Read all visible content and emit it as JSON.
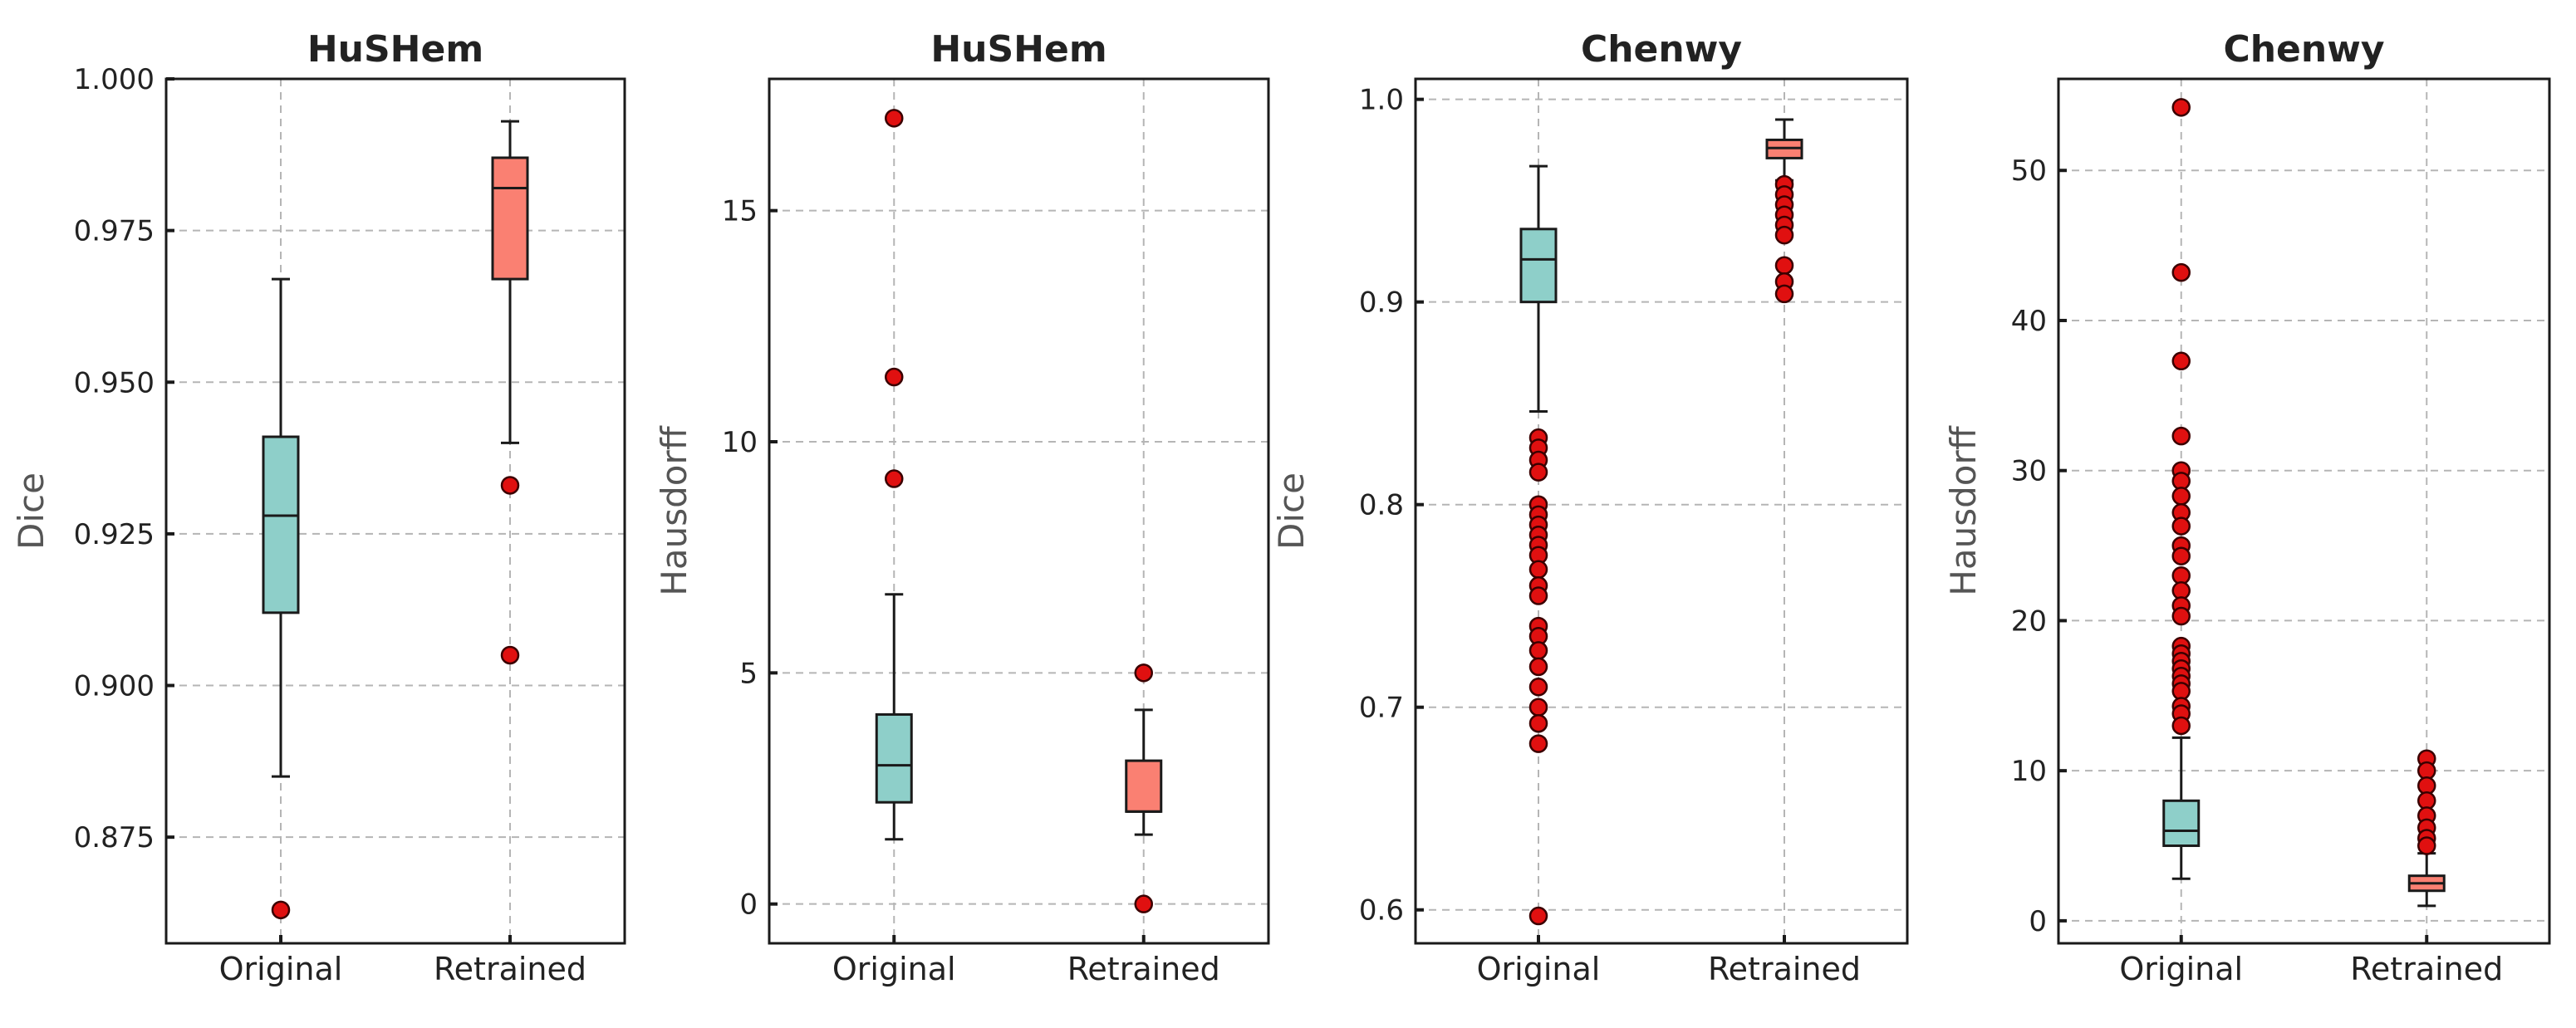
{
  "colors": {
    "original": "#8ecfc9",
    "retrained": "#fa8072",
    "flier": "#e01010"
  },
  "chart_data": [
    {
      "type": "box",
      "title": "HuSHem",
      "ylabel": "Dice",
      "xlabel": "",
      "ylim": [
        0.8575,
        1.0
      ],
      "yticks": [
        0.875,
        0.9,
        0.925,
        0.95,
        0.975,
        1.0
      ],
      "ytick_labels": [
        "0.875",
        "0.900",
        "0.925",
        "0.950",
        "0.975",
        "1.000"
      ],
      "categories": [
        "Original",
        "Retrained"
      ],
      "series": [
        {
          "name": "Original",
          "whisker_low": 0.885,
          "q1": 0.912,
          "median": 0.928,
          "q3": 0.941,
          "whisker_high": 0.967,
          "fliers": [
            0.863
          ]
        },
        {
          "name": "Retrained",
          "whisker_low": 0.94,
          "q1": 0.967,
          "median": 0.982,
          "q3": 0.987,
          "whisker_high": 0.993,
          "fliers": [
            0.933,
            0.905
          ]
        }
      ]
    },
    {
      "type": "box",
      "title": "HuSHem",
      "ylabel": "Hausdorff",
      "xlabel": "",
      "ylim": [
        -0.85,
        17.85
      ],
      "yticks": [
        0,
        5,
        10,
        15
      ],
      "ytick_labels": [
        "0",
        "5",
        "10",
        "15"
      ],
      "categories": [
        "Original",
        "Retrained"
      ],
      "series": [
        {
          "name": "Original",
          "whisker_low": 1.4,
          "q1": 2.2,
          "median": 3.0,
          "q3": 4.1,
          "whisker_high": 6.7,
          "fliers": [
            17.0,
            11.4,
            9.2
          ]
        },
        {
          "name": "Retrained",
          "whisker_low": 1.5,
          "q1": 2.0,
          "median": 2.0,
          "q3": 3.1,
          "whisker_high": 4.2,
          "fliers": [
            5.0,
            0.0
          ]
        }
      ]
    },
    {
      "type": "box",
      "title": "Chenwy",
      "ylabel": "Dice",
      "xlabel": "",
      "ylim": [
        0.5835,
        1.0101
      ],
      "yticks": [
        0.6,
        0.7,
        0.8,
        0.9,
        1.0
      ],
      "ytick_labels": [
        "0.6",
        "0.7",
        "0.8",
        "0.9",
        "1.0"
      ],
      "categories": [
        "Original",
        "Retrained"
      ],
      "series": [
        {
          "name": "Original",
          "whisker_low": 0.846,
          "q1": 0.9,
          "median": 0.921,
          "q3": 0.936,
          "whisker_high": 0.967,
          "fliers": [
            0.833,
            0.828,
            0.822,
            0.816,
            0.8,
            0.795,
            0.79,
            0.785,
            0.78,
            0.775,
            0.768,
            0.76,
            0.755,
            0.74,
            0.735,
            0.728,
            0.72,
            0.71,
            0.7,
            0.692,
            0.682,
            0.597
          ]
        },
        {
          "name": "Retrained",
          "whisker_low": 0.96,
          "q1": 0.971,
          "median": 0.976,
          "q3": 0.98,
          "whisker_high": 0.99,
          "fliers": [
            0.958,
            0.953,
            0.948,
            0.943,
            0.938,
            0.933,
            0.918,
            0.91,
            0.904
          ]
        }
      ]
    },
    {
      "type": "box",
      "title": "Chenwy",
      "ylabel": "Hausdorff",
      "xlabel": "",
      "ylim": [
        -1.5,
        56.1
      ],
      "yticks": [
        0,
        10,
        20,
        30,
        40,
        50
      ],
      "ytick_labels": [
        "0",
        "10",
        "20",
        "30",
        "40",
        "50"
      ],
      "categories": [
        "Original",
        "Retrained"
      ],
      "series": [
        {
          "name": "Original",
          "whisker_low": 2.8,
          "q1": 5.0,
          "median": 6.0,
          "q3": 8.0,
          "whisker_high": 12.2,
          "fliers": [
            54.2,
            43.2,
            37.3,
            32.3,
            30.0,
            29.3,
            28.3,
            27.2,
            26.3,
            25.0,
            24.3,
            23.0,
            22.0,
            21.0,
            20.3,
            18.3,
            17.8,
            17.3,
            16.8,
            16.3,
            15.8,
            15.3,
            14.3,
            13.8,
            13.0
          ]
        },
        {
          "name": "Retrained",
          "whisker_low": 1.0,
          "q1": 2.0,
          "median": 2.5,
          "q3": 3.0,
          "whisker_high": 4.5,
          "fliers": [
            10.8,
            10.0,
            9.0,
            8.0,
            7.0,
            6.2,
            5.5,
            5.0
          ]
        }
      ]
    }
  ]
}
